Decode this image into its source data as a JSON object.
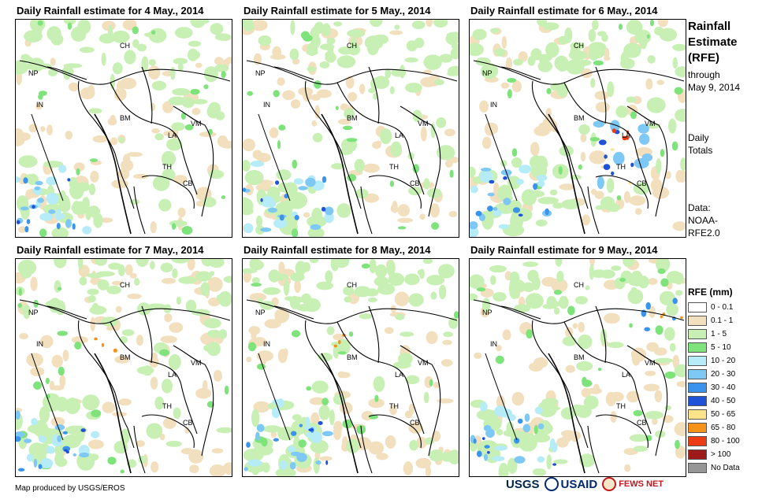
{
  "panels": [
    {
      "title": "Daily Rainfall estimate for 4 May., 2014"
    },
    {
      "title": "Daily Rainfall estimate for 5 May., 2014"
    },
    {
      "title": "Daily Rainfall estimate for 6 May., 2014"
    },
    {
      "title": "Daily Rainfall estimate for 7 May., 2014"
    },
    {
      "title": "Daily Rainfall estimate for 8 May., 2014"
    },
    {
      "title": "Daily Rainfall estimate for 9 May., 2014"
    }
  ],
  "country_labels": {
    "ch": "CH",
    "np": "NP",
    "in": "IN",
    "bm": "BM",
    "la": "LA",
    "vm": "VM",
    "th": "TH",
    "cb": "CB"
  },
  "sidebar": {
    "title_line1": "Rainfall",
    "title_line2": "Estimate",
    "title_line3": "(RFE)",
    "through": "through",
    "through_date": "May 9, 2014",
    "daily": "Daily",
    "totals": "Totals",
    "data_label": "Data:",
    "data_src1": "NOAA-",
    "data_src2": "RFE2.0"
  },
  "legend": {
    "title": "RFE (mm)",
    "items": [
      {
        "label": "0 - 0.1",
        "color": "#ffffff"
      },
      {
        "label": "0.1 - 1",
        "color": "#f2dfbd"
      },
      {
        "label": "1 - 5",
        "color": "#c8f0b4"
      },
      {
        "label": "5 - 10",
        "color": "#7de37a"
      },
      {
        "label": "10 - 20",
        "color": "#b5ecf7"
      },
      {
        "label": "20 - 30",
        "color": "#7ec8f5"
      },
      {
        "label": "30 - 40",
        "color": "#3a93ec"
      },
      {
        "label": "40 - 50",
        "color": "#1f52d6"
      },
      {
        "label": "50 - 65",
        "color": "#fde48a"
      },
      {
        "label": "65 - 80",
        "color": "#f79218"
      },
      {
        "label": "80 - 100",
        "color": "#ec3c14"
      },
      {
        "label": "> 100",
        "color": "#9e1a1a"
      },
      {
        "label": "No Data",
        "color": "#969696"
      }
    ]
  },
  "footer": {
    "credit": "Map produced by USGS/EROS"
  },
  "logos": {
    "usgs": "USGS",
    "usaid": "USAID",
    "fews": "FEWS NET"
  }
}
